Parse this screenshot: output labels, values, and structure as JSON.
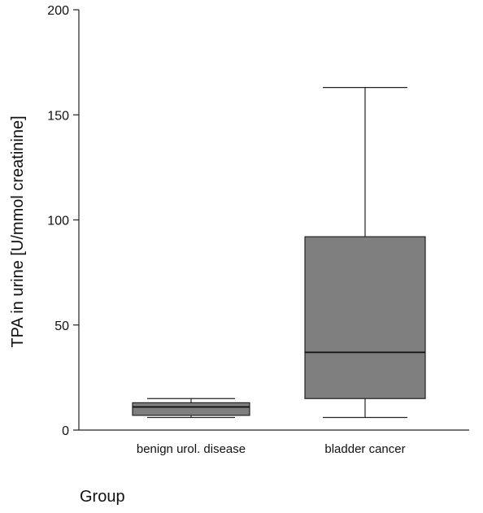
{
  "chart_data": {
    "type": "box",
    "title": "",
    "xlabel": "Group",
    "ylabel": "TPA in urine [U/mmol creatinine]",
    "ylim": [
      0,
      200
    ],
    "yticks": [
      0,
      50,
      100,
      150,
      200
    ],
    "grid": false,
    "categories": [
      "benign urol. disease",
      "bladder cancer"
    ],
    "series": [
      {
        "values": [
          {
            "min": 6,
            "q1": 7,
            "median": 11,
            "q3": 13,
            "max": 15
          },
          {
            "min": 6,
            "q1": 15,
            "median": 37,
            "q3": 92,
            "max": 163
          }
        ]
      }
    ],
    "box_color": "#7f7f7f"
  }
}
